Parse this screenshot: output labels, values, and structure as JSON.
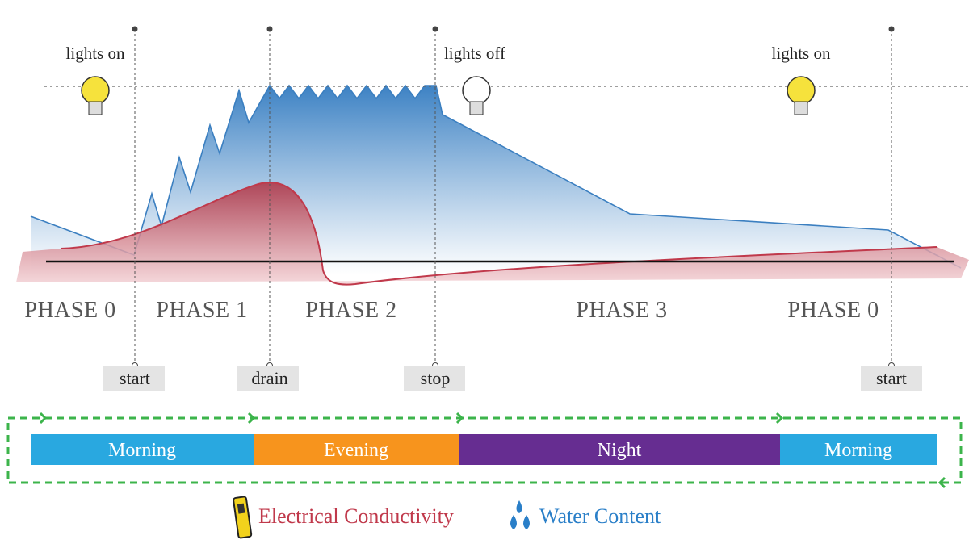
{
  "lights": [
    "lights on",
    "lights off",
    "lights on"
  ],
  "phases": [
    "PHASE 0",
    "PHASE 1",
    "PHASE 2",
    "PHASE 3",
    "PHASE 0"
  ],
  "markers": [
    "start",
    "drain",
    "stop",
    "start"
  ],
  "periods": [
    "Morning",
    "Evening",
    "Night",
    "Morning"
  ],
  "legend": [
    "Electrical Conductivity",
    "Water Content"
  ]
}
